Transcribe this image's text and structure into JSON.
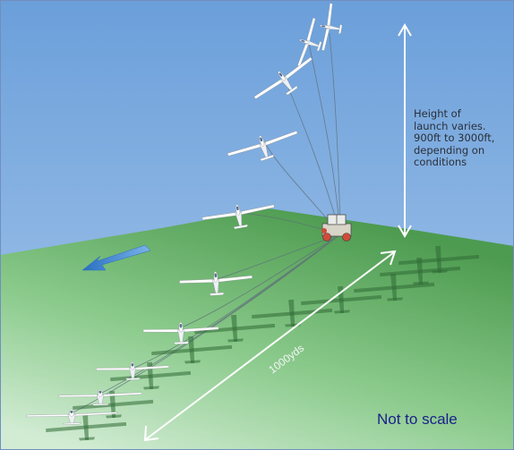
{
  "height_note": {
    "lines": [
      "Height of",
      "launch varies.",
      "900ft to 3000ft,",
      "depending on",
      "conditions"
    ]
  },
  "distance_label": "1000yds",
  "scale_note": "Not to scale",
  "colors": {
    "sky_top": "#6c9fd9",
    "sky_bottom": "#a9c9ec",
    "ground_far": "#4f9e52",
    "ground_near": "#c9e8cc",
    "wind_arrow": "#2f7fd0",
    "winch": "#d04a3a",
    "scale_text": "#1b1f8a"
  },
  "icons": [
    "glider-icon",
    "glider-shadow-icon",
    "winch-truck-icon",
    "wind-direction-arrow-icon"
  ]
}
